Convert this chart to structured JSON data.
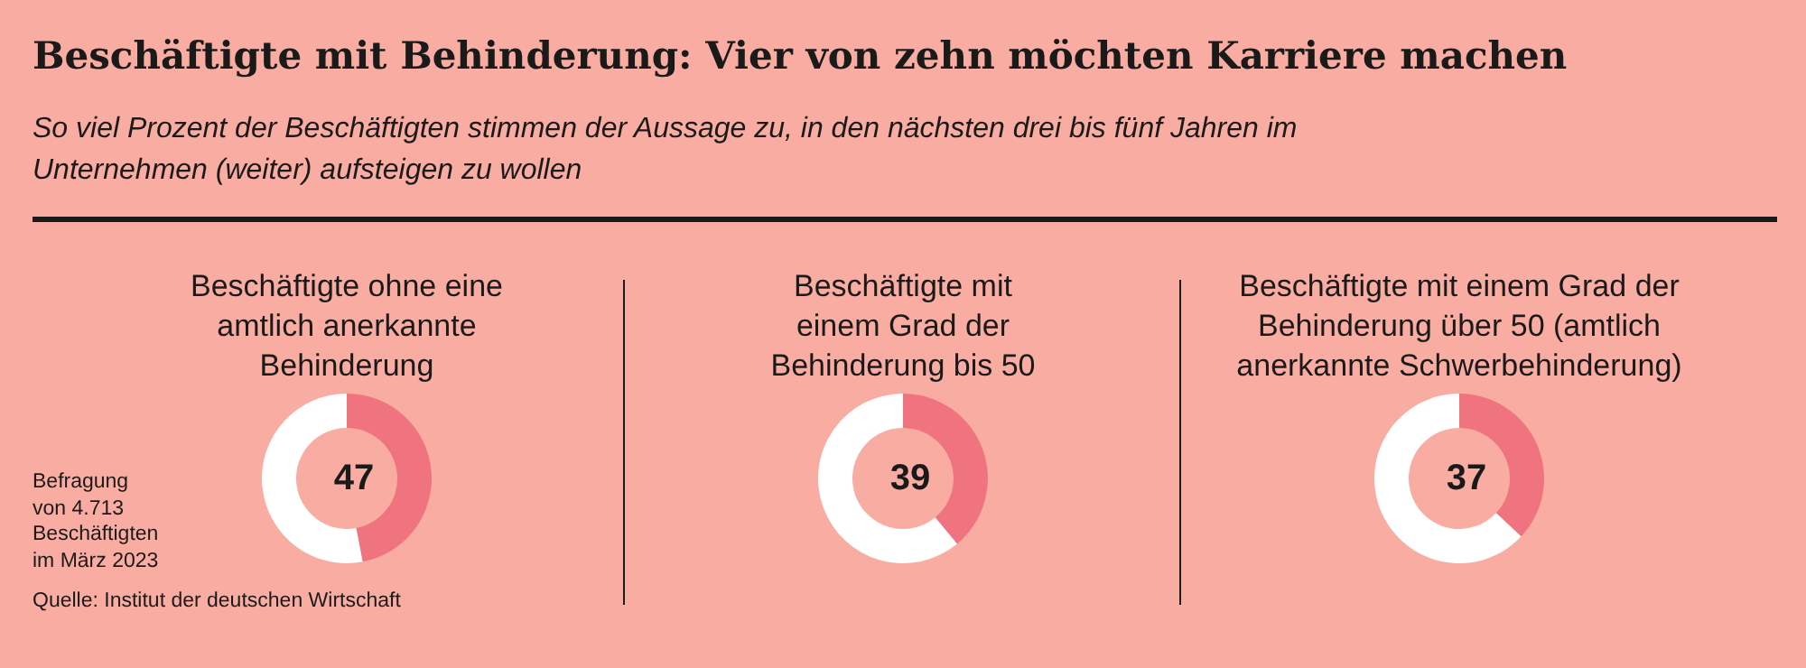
{
  "chart_data": [
    {
      "type": "other",
      "title": "Beschäftigte mit Behinderung: Vier von zehn möchten Karriere machen",
      "subtitle": "So viel Prozent der Beschäftigten stimmen der Aussage zu, in den nächsten drei bis fünf Jahren im Unternehmen (weiter) aufsteigen zu wollen",
      "annotations": [
        "Befragung von 4.713 Beschäftigten im März 2023",
        "Quelle: Institut der deutschen Wirtschaft"
      ]
    },
    {
      "type": "donut",
      "title": "Beschäftigte ohne eine amtlich anerkannte Behinderung",
      "categories": [
        null,
        null
      ],
      "values": [
        47,
        53
      ],
      "colors": [
        "#f07480",
        "#ffffff"
      ],
      "value_labels": [
        "47",
        null
      ]
    },
    {
      "type": "donut",
      "title": "Beschäftigte mit einem Grad der Behinderung bis 50",
      "categories": [
        null,
        null
      ],
      "values": [
        39,
        61
      ],
      "colors": [
        "#f07480",
        "#ffffff"
      ],
      "value_labels": [
        "39",
        null
      ]
    },
    {
      "type": "donut",
      "title": "Beschäftigte mit einem Grad der Behinderung über 50 (amtlich anerkannte Schwerbehinderung)",
      "categories": [
        null,
        null
      ],
      "values": [
        37,
        63
      ],
      "colors": [
        "#f07480",
        "#ffffff"
      ],
      "value_labels": [
        "37",
        null
      ]
    }
  ]
}
